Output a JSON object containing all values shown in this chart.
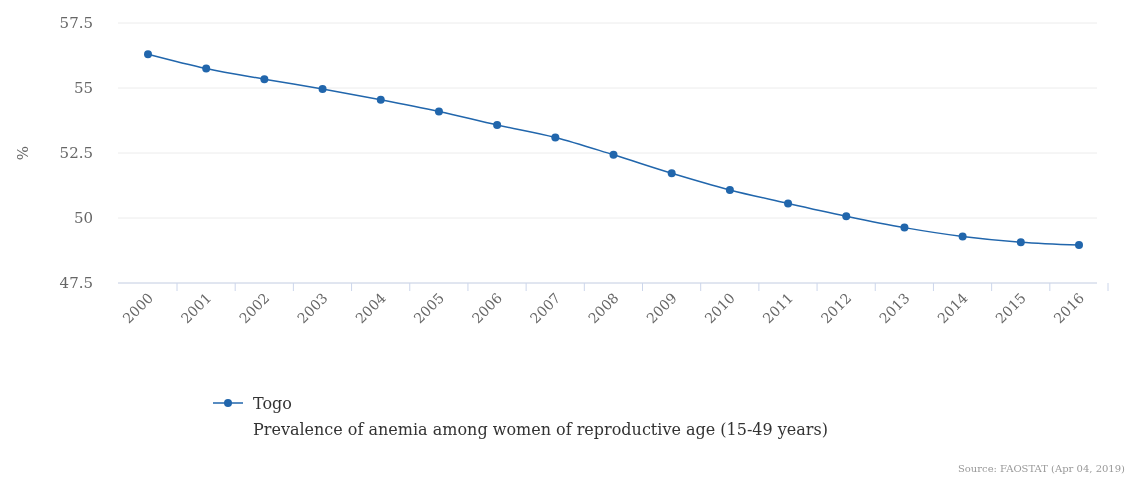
{
  "chart_data": {
    "type": "line",
    "title": "Prevalence of anemia among women of reproductive age (15-49 years)",
    "ylabel": "%",
    "categories": [
      "2000",
      "2001",
      "2002",
      "2003",
      "2004",
      "2005",
      "2006",
      "2007",
      "2008",
      "2009",
      "2010",
      "2011",
      "2012",
      "2013",
      "2014",
      "2015",
      "2016"
    ],
    "series": [
      {
        "name": "Togo",
        "color": "#2166ac",
        "values": [
          56.3,
          55.75,
          55.34,
          54.96,
          54.55,
          54.1,
          53.58,
          53.1,
          52.43,
          51.72,
          51.08,
          50.56,
          50.07,
          49.63,
          49.29,
          49.07,
          48.96
        ]
      }
    ],
    "ylim": [
      47.5,
      57.5
    ],
    "yticks": [
      47.5,
      50,
      52.5,
      55,
      57.5
    ],
    "grid": "y",
    "legend": "bottom",
    "marker": "circle",
    "line_style": "solid",
    "annotations": [
      "Source: FAOSTAT (Apr 04, 2019)"
    ]
  }
}
